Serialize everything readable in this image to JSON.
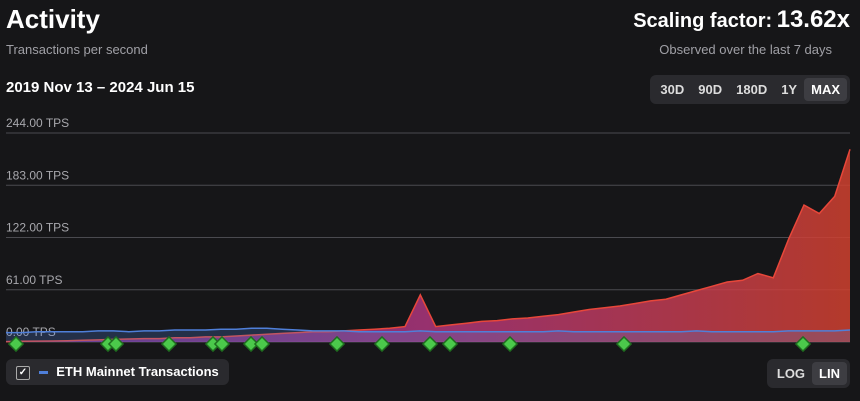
{
  "header": {
    "title": "Activity",
    "subtitle": "Transactions per second",
    "scaling_label": "Scaling factor:",
    "scaling_value": "13.62x",
    "scaling_note": "Observed over the last 7 days",
    "date_range": "2019 Nov 13 – 2024 Jun 15"
  },
  "range_buttons": [
    "30D",
    "90D",
    "180D",
    "1Y",
    "MAX"
  ],
  "scale_buttons": [
    "LOG",
    "LIN"
  ],
  "chart_data": {
    "type": "area",
    "ylim": [
      0,
      244
    ],
    "yticks": [
      {
        "value": 0,
        "label": "0.00 TPS"
      },
      {
        "value": 61,
        "label": "61.00 TPS"
      },
      {
        "value": 122,
        "label": "122.00 TPS"
      },
      {
        "value": 183,
        "label": "183.00 TPS"
      },
      {
        "value": 244,
        "label": "244.00 TPS"
      }
    ],
    "grid": true,
    "log_scale": false,
    "series": [
      {
        "name": "ETH Mainnet Transactions",
        "color": "#4f7fd9",
        "values": [
          11,
          11,
          12,
          12,
          12,
          12,
          13,
          13,
          12,
          13,
          13,
          14,
          14,
          14,
          15,
          15,
          16,
          16,
          15,
          14,
          13,
          13,
          13,
          12,
          12,
          12,
          12,
          13,
          12,
          12,
          12,
          12,
          12,
          12,
          12,
          12,
          13,
          12,
          12,
          12,
          12,
          12,
          12,
          12,
          12,
          13,
          12,
          12,
          12,
          12,
          12,
          13,
          13,
          13,
          13,
          14
        ]
      },
      {
        "color": "#e8473a",
        "values": [
          0.5,
          0.8,
          1,
          1.2,
          1.5,
          2,
          2.5,
          3,
          3.5,
          4,
          4,
          5,
          5,
          6,
          6,
          7,
          8,
          9,
          10,
          11,
          12,
          12,
          13,
          14,
          15,
          16,
          18,
          55,
          18,
          20,
          22,
          24,
          25,
          27,
          28,
          30,
          32,
          35,
          38,
          40,
          42,
          45,
          48,
          50,
          55,
          60,
          65,
          70,
          72,
          80,
          75,
          120,
          160,
          150,
          170,
          225
        ]
      }
    ]
  }
}
